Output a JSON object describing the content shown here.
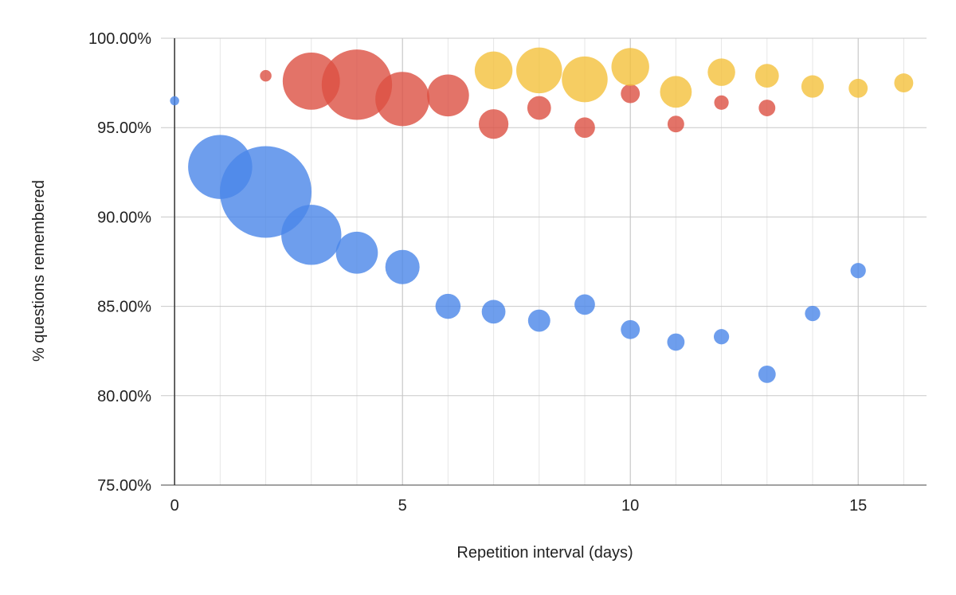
{
  "chart_data": {
    "type": "bubble",
    "title": "",
    "xlabel": "Repetition interval (days)",
    "ylabel": "% questions remembered",
    "xlim": [
      -0.3,
      16.5
    ],
    "ylim": [
      75,
      100
    ],
    "x_ticks": [
      0,
      5,
      10,
      15
    ],
    "x_tick_labels": [
      "0",
      "5",
      "10",
      "15"
    ],
    "y_ticks": [
      75,
      80,
      85,
      90,
      95,
      100
    ],
    "y_tick_labels": [
      "75.00%",
      "80.00%",
      "85.00%",
      "90.00%",
      "95.00%",
      "100.00%"
    ],
    "minor_x_gridlines": true,
    "grid": true,
    "legend": "none",
    "series": [
      {
        "color": "#4a86e8",
        "points": [
          {
            "x": 0,
            "y": 96.5,
            "size": 1.0
          },
          {
            "x": 1,
            "y": 92.8,
            "size": 49
          },
          {
            "x": 2,
            "y": 91.4,
            "size": 100
          },
          {
            "x": 3,
            "y": 89.0,
            "size": 43
          },
          {
            "x": 4,
            "y": 88.0,
            "size": 21
          },
          {
            "x": 5,
            "y": 87.2,
            "size": 14
          },
          {
            "x": 6,
            "y": 85.0,
            "size": 7.5
          },
          {
            "x": 7,
            "y": 84.7,
            "size": 6.7
          },
          {
            "x": 8,
            "y": 84.2,
            "size": 5.9
          },
          {
            "x": 9,
            "y": 85.1,
            "size": 5.0
          },
          {
            "x": 10,
            "y": 83.7,
            "size": 4.3
          },
          {
            "x": 11,
            "y": 83.0,
            "size": 3.6
          },
          {
            "x": 12,
            "y": 83.3,
            "size": 2.8
          },
          {
            "x": 13,
            "y": 81.2,
            "size": 3.6
          },
          {
            "x": 14,
            "y": 84.6,
            "size": 2.8
          },
          {
            "x": 15,
            "y": 87.0,
            "size": 2.8
          }
        ]
      },
      {
        "color": "#dc5042",
        "points": [
          {
            "x": 2,
            "y": 97.9,
            "size": 1.6
          },
          {
            "x": 3,
            "y": 97.6,
            "size": 39
          },
          {
            "x": 4,
            "y": 97.4,
            "size": 59
          },
          {
            "x": 5,
            "y": 96.6,
            "size": 35
          },
          {
            "x": 6,
            "y": 96.8,
            "size": 21
          },
          {
            "x": 7,
            "y": 95.2,
            "size": 10.5
          },
          {
            "x": 8,
            "y": 96.1,
            "size": 6.7
          },
          {
            "x": 9,
            "y": 95.0,
            "size": 5.0
          },
          {
            "x": 10,
            "y": 96.9,
            "size": 4.3
          },
          {
            "x": 11,
            "y": 95.2,
            "size": 3.3
          },
          {
            "x": 12,
            "y": 96.4,
            "size": 2.5
          },
          {
            "x": 13,
            "y": 96.1,
            "size": 3.3
          }
        ]
      },
      {
        "color": "#f4c13b",
        "points": [
          {
            "x": 7,
            "y": 98.2,
            "size": 17
          },
          {
            "x": 8,
            "y": 98.2,
            "size": 25
          },
          {
            "x": 9,
            "y": 97.7,
            "size": 25
          },
          {
            "x": 10,
            "y": 98.4,
            "size": 17
          },
          {
            "x": 11,
            "y": 97.0,
            "size": 12
          },
          {
            "x": 12,
            "y": 98.1,
            "size": 9.0
          },
          {
            "x": 13,
            "y": 97.9,
            "size": 6.7
          },
          {
            "x": 14,
            "y": 97.3,
            "size": 6.0
          },
          {
            "x": 15,
            "y": 97.2,
            "size": 4.3
          },
          {
            "x": 16,
            "y": 97.5,
            "size": 4.3
          }
        ]
      }
    ]
  }
}
